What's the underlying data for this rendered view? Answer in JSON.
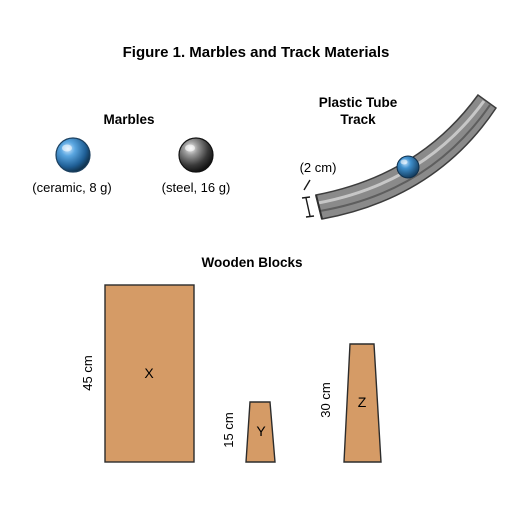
{
  "figure": {
    "title": "Figure 1. Marbles and Track Materials"
  },
  "marbles": {
    "heading": "Marbles",
    "items": [
      {
        "label": "(ceramic, 8 g)",
        "color": "#2e7fc0"
      },
      {
        "label": "(steel, 16 g)",
        "color": "#3a3a3a"
      }
    ]
  },
  "track": {
    "heading_line1": "Plastic Tube",
    "heading_line2": "Track",
    "dimension": "(2 cm)",
    "color": "#7d7d7d"
  },
  "blocks": {
    "heading": "Wooden Blocks",
    "color": "#d59b66",
    "items": [
      {
        "letter": "X",
        "height": "45 cm"
      },
      {
        "letter": "Y",
        "height": "15 cm"
      },
      {
        "letter": "Z",
        "height": "30 cm"
      }
    ]
  }
}
